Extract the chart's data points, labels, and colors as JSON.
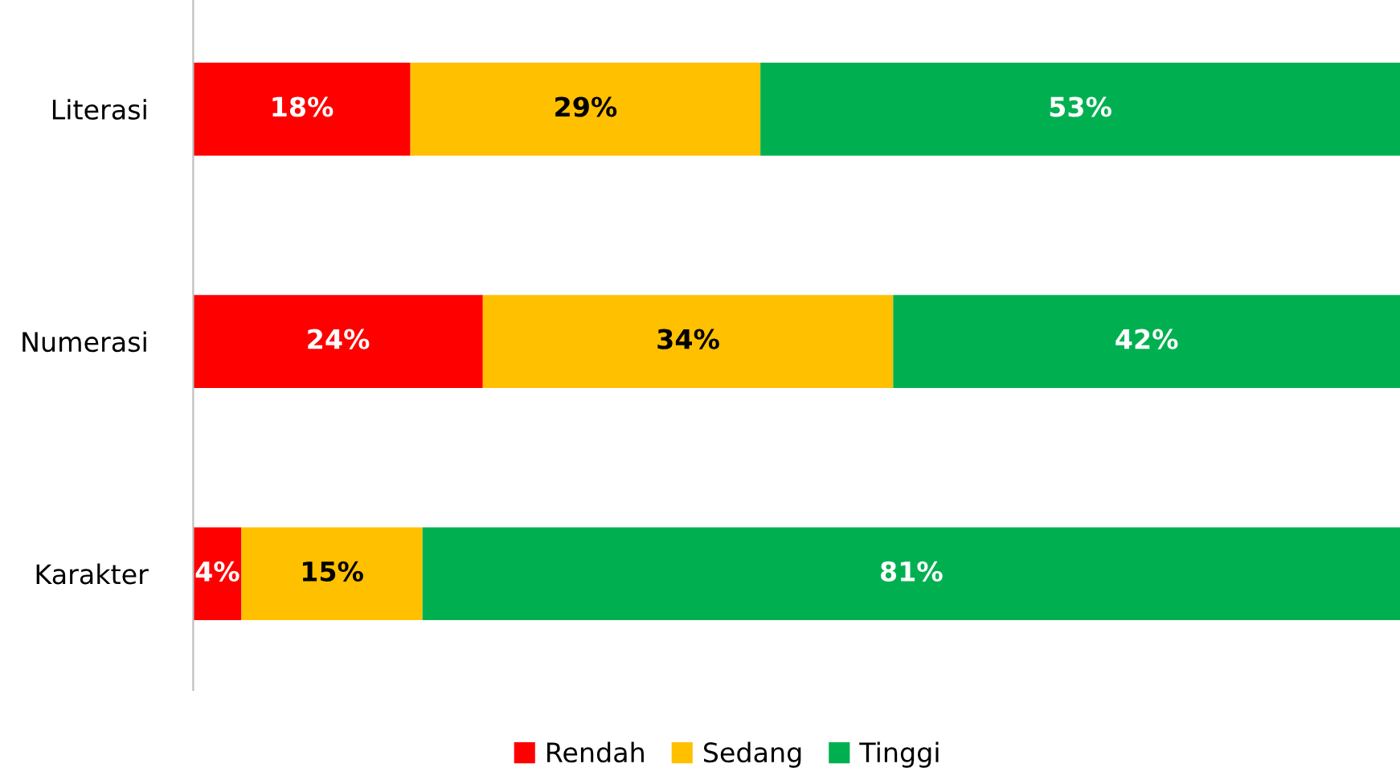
{
  "chart_data": {
    "type": "bar",
    "orientation": "horizontal",
    "stacked": true,
    "legend": "bottom",
    "grid": false,
    "categories": [
      "Literasi",
      "Numerasi",
      "Karakter"
    ],
    "series": [
      {
        "name": "Rendah",
        "color": "#ff0000",
        "values": [
          18,
          24,
          4
        ],
        "value_labels": [
          "18%",
          "24%",
          "4%"
        ]
      },
      {
        "name": "Sedang",
        "color": "#ffc000",
        "values": [
          29,
          34,
          15
        ],
        "value_labels": [
          "29%",
          "34%",
          "15%"
        ]
      },
      {
        "name": "Tinggi",
        "color": "#00b050",
        "values": [
          53,
          42,
          81
        ],
        "value_labels": [
          "53%",
          "42%",
          "81%"
        ]
      }
    ]
  }
}
